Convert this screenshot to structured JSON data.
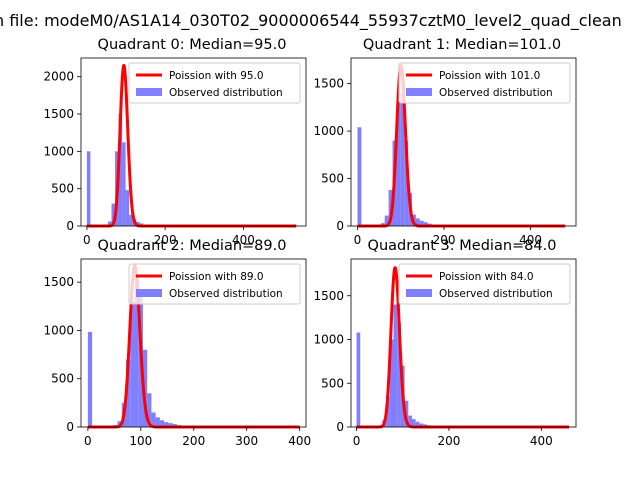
{
  "figure": {
    "suptitle": "n file: modeM0/AS1A14_030T02_9000006544_55937cztM0_level2_quad_clean"
  },
  "colors": {
    "poisson": "#ff0000",
    "observed": "#7f7fff"
  },
  "chart_data": [
    {
      "type": "bar",
      "title": "Quadrant 0: Median=95.0",
      "median": 95.0,
      "xlim": [
        -15,
        560
      ],
      "ylim": [
        0,
        2250
      ],
      "xticks": [
        0,
        200,
        400
      ],
      "yticks": [
        0,
        500,
        1000,
        1500,
        2000
      ],
      "legend": {
        "placement": "top-right",
        "entries": [
          "Poission with 95.0",
          "Observed distribution"
        ]
      },
      "series": [
        {
          "name": "Poission with 95.0",
          "kind": "line",
          "mean": 95.0,
          "x_range": [
            0,
            535
          ],
          "peak": 2150
        },
        {
          "name": "Observed distribution",
          "kind": "histogram",
          "bin_width": 9,
          "bins": [
            [
              0,
              1000
            ],
            [
              45,
              20
            ],
            [
              54,
              60
            ],
            [
              63,
              300
            ],
            [
              72,
              1000
            ],
            [
              81,
              1500
            ],
            [
              90,
              1120
            ],
            [
              99,
              480
            ],
            [
              108,
              150
            ],
            [
              117,
              90
            ],
            [
              126,
              55
            ],
            [
              135,
              35
            ],
            [
              144,
              20
            ],
            [
              153,
              15
            ],
            [
              162,
              10
            ],
            [
              171,
              8
            ],
            [
              180,
              5
            ]
          ]
        }
      ]
    },
    {
      "type": "bar",
      "title": "Quadrant 1: Median=101.0",
      "median": 101.0,
      "xlim": [
        -15,
        505
      ],
      "ylim": [
        0,
        1770
      ],
      "xticks": [
        0,
        200,
        400
      ],
      "yticks": [
        0,
        500,
        1000,
        1500
      ],
      "legend": {
        "placement": "top-right",
        "entries": [
          "Poission with 101.0",
          "Observed distribution"
        ]
      },
      "series": [
        {
          "name": "Poission with 101.0",
          "kind": "line",
          "mean": 101.0,
          "x_range": [
            0,
            480
          ],
          "peak": 1690
        },
        {
          "name": "Observed distribution",
          "kind": "histogram",
          "bin_width": 9,
          "bins": [
            [
              0,
              1040
            ],
            [
              54,
              30
            ],
            [
              63,
              110
            ],
            [
              72,
              380
            ],
            [
              81,
              900
            ],
            [
              90,
              1300
            ],
            [
              99,
              1400
            ],
            [
              108,
              900
            ],
            [
              117,
              350
            ],
            [
              126,
              120
            ],
            [
              135,
              80
            ],
            [
              144,
              55
            ],
            [
              153,
              40
            ],
            [
              162,
              25
            ],
            [
              171,
              15
            ],
            [
              180,
              8
            ],
            [
              189,
              5
            ]
          ]
        }
      ]
    },
    {
      "type": "bar",
      "title": "Quadrant 2: Median=89.0",
      "median": 89.0,
      "xlim": [
        -13,
        412
      ],
      "ylim": [
        0,
        1740
      ],
      "xticks": [
        0,
        100,
        200,
        300,
        400
      ],
      "yticks": [
        0,
        500,
        1000,
        1500
      ],
      "legend": {
        "placement": "top-right",
        "entries": [
          "Poission with 89.0",
          "Observed distribution"
        ]
      },
      "series": [
        {
          "name": "Poission with 89.0",
          "kind": "line",
          "mean": 89.0,
          "x_range": [
            0,
            400
          ],
          "peak": 1670
        },
        {
          "name": "Observed distribution",
          "kind": "histogram",
          "bin_width": 8,
          "bins": [
            [
              0,
              985
            ],
            [
              48,
              20
            ],
            [
              56,
              60
            ],
            [
              64,
              250
            ],
            [
              72,
              700
            ],
            [
              80,
              1300
            ],
            [
              88,
              1570
            ],
            [
              96,
              1350
            ],
            [
              104,
              800
            ],
            [
              112,
              350
            ],
            [
              120,
              150
            ],
            [
              128,
              100
            ],
            [
              136,
              70
            ],
            [
              144,
              50
            ],
            [
              152,
              40
            ],
            [
              160,
              30
            ],
            [
              168,
              20
            ],
            [
              176,
              15
            ],
            [
              184,
              10
            ],
            [
              192,
              5
            ]
          ]
        }
      ]
    },
    {
      "type": "bar",
      "title": "Quadrant 3: Median=84.0",
      "median": 84.0,
      "xlim": [
        -12,
        475
      ],
      "ylim": [
        0,
        1920
      ],
      "xticks": [
        0,
        200,
        400
      ],
      "yticks": [
        0,
        500,
        1000,
        1500
      ],
      "legend": {
        "placement": "top-right",
        "entries": [
          "Poission with 84.0",
          "Observed distribution"
        ]
      },
      "series": [
        {
          "name": "Poission with 84.0",
          "kind": "line",
          "mean": 84.0,
          "x_range": [
            0,
            460
          ],
          "peak": 1820
        },
        {
          "name": "Observed distribution",
          "kind": "histogram",
          "bin_width": 8,
          "bins": [
            [
              0,
              1080
            ],
            [
              48,
              20
            ],
            [
              56,
              80
            ],
            [
              64,
              350
            ],
            [
              72,
              1000
            ],
            [
              80,
              1400
            ],
            [
              88,
              1200
            ],
            [
              96,
              700
            ],
            [
              104,
              300
            ],
            [
              112,
              130
            ],
            [
              120,
              90
            ],
            [
              128,
              60
            ],
            [
              136,
              40
            ],
            [
              144,
              30
            ],
            [
              152,
              20
            ],
            [
              160,
              12
            ],
            [
              168,
              6
            ]
          ]
        }
      ]
    }
  ]
}
